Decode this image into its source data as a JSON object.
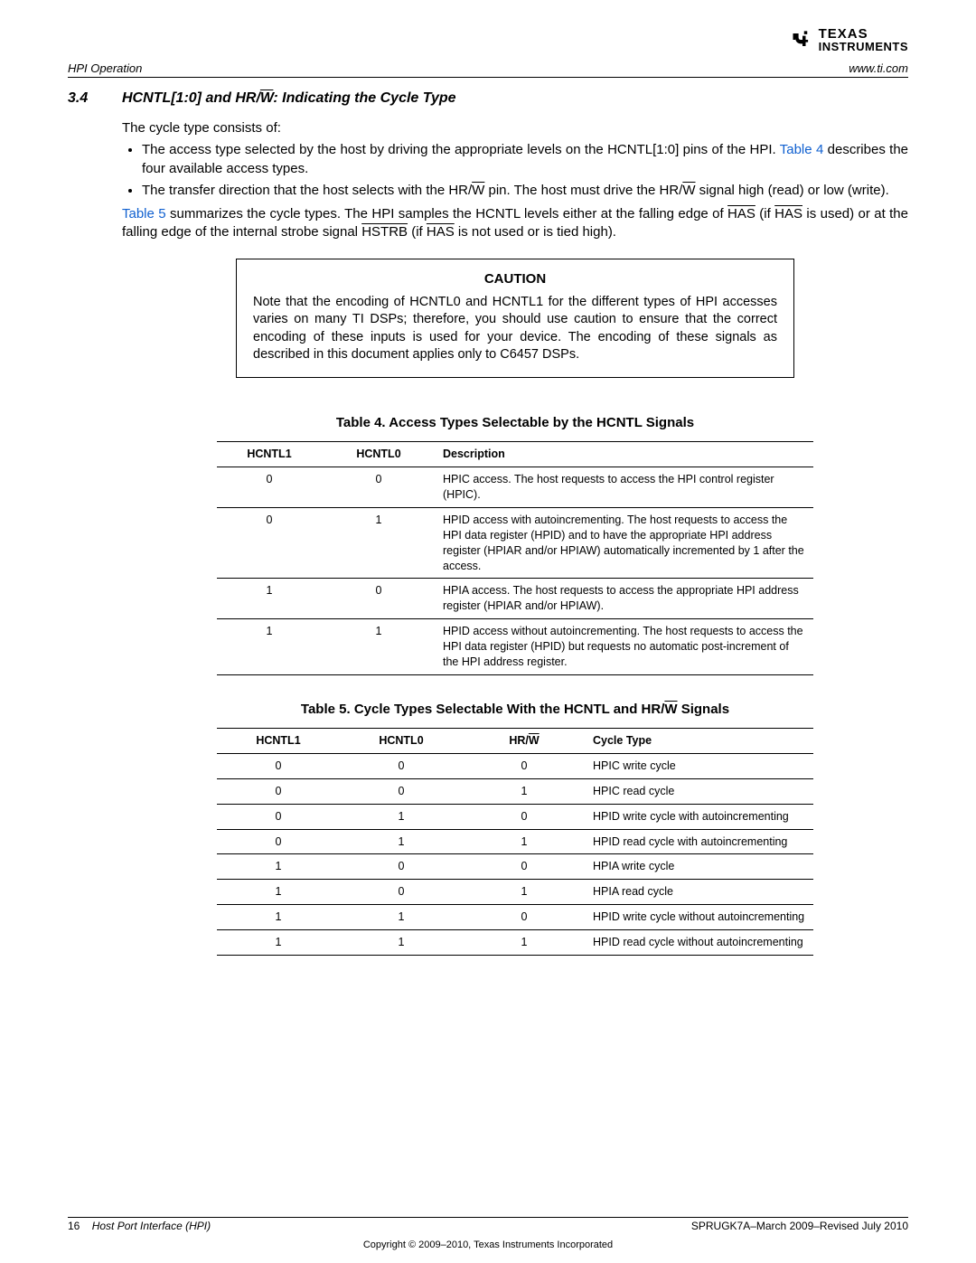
{
  "header": {
    "section": "HPI Operation",
    "url": "www.ti.com",
    "logo": {
      "line1": "TEXAS",
      "line2": "INSTRUMENTS"
    }
  },
  "title": {
    "number": "3.4",
    "text_pre": "HCNTL[1:0] and HR/",
    "text_ov": "W",
    "text_post": ": Indicating the Cycle Type"
  },
  "body": {
    "intro": "The cycle type consists of:",
    "bullet1_a": "The access type selected by the host by driving the appropriate levels on the HCNTL[1:0] pins of the HPI. ",
    "bullet1_link": "Table 4",
    "bullet1_b": " describes the four available access types.",
    "bullet2_a": "The transfer direction that the host selects with the HR/",
    "bullet2_ov1": "W",
    "bullet2_b": " pin. The host must drive the HR/",
    "bullet2_ov2": "W",
    "bullet2_c": " signal high (read) or low (write).",
    "para_link": "Table 5",
    "para_a": " summarizes the cycle types. The HPI samples the HCNTL levels either at the falling edge of ",
    "para_ov1": "HAS",
    "para_b": " (if ",
    "para_ov2": "HAS",
    "para_c": " is used) or at the falling edge of the internal strobe signal ",
    "para_ov3": "HSTRB",
    "para_d": " (if ",
    "para_ov4": "HAS",
    "para_e": " is not used or is tied high)."
  },
  "caution": {
    "title": "CAUTION",
    "text": "Note that the encoding of HCNTL0 and HCNTL1 for the different types of HPI accesses varies on many TI DSPs; therefore, you should use caution to ensure that the correct encoding of these inputs is used for your device. The encoding of these signals as described in this document applies only to C6457 DSPs."
  },
  "table4": {
    "caption": "Table 4. Access Types Selectable by the HCNTL Signals",
    "columns": [
      "HCNTL1",
      "HCNTL0",
      "Description"
    ],
    "rows": [
      [
        "0",
        "0",
        "HPIC access. The host requests to access the HPI control register (HPIC)."
      ],
      [
        "0",
        "1",
        "HPID access with autoincrementing. The host requests to access the HPI data register (HPID) and to have the appropriate HPI address register (HPIAR and/or HPIAW) automatically incremented by 1 after the access."
      ],
      [
        "1",
        "0",
        "HPIA access. The host requests to access the appropriate HPI address register (HPIAR and/or HPIAW)."
      ],
      [
        "1",
        "1",
        "HPID access without autoincrementing. The host requests to access the HPI data register (HPID) but requests no automatic post-increment of the HPI address register."
      ]
    ]
  },
  "table5": {
    "caption_a": "Table 5. Cycle Types Selectable With the HCNTL and HR/",
    "caption_ov": "W",
    "caption_b": " Signals",
    "col1": "HCNTL1",
    "col2": "HCNTL0",
    "col3_a": "HR/",
    "col3_ov": "W",
    "col4": "Cycle Type",
    "rows": [
      [
        "0",
        "0",
        "0",
        "HPIC write cycle"
      ],
      [
        "0",
        "0",
        "1",
        "HPIC read cycle"
      ],
      [
        "0",
        "1",
        "0",
        "HPID write cycle with autoincrementing"
      ],
      [
        "0",
        "1",
        "1",
        "HPID read cycle with autoincrementing"
      ],
      [
        "1",
        "0",
        "0",
        "HPIA write cycle"
      ],
      [
        "1",
        "0",
        "1",
        "HPIA read cycle"
      ],
      [
        "1",
        "1",
        "0",
        "HPID write cycle without autoincrementing"
      ],
      [
        "1",
        "1",
        "1",
        "HPID read cycle without autoincrementing"
      ]
    ]
  },
  "footer": {
    "page": "16",
    "doc": "Host Port Interface (HPI)",
    "rev": "SPRUGK7A–March 2009–Revised July 2010",
    "copyright": "Copyright © 2009–2010, Texas Instruments Incorporated"
  }
}
